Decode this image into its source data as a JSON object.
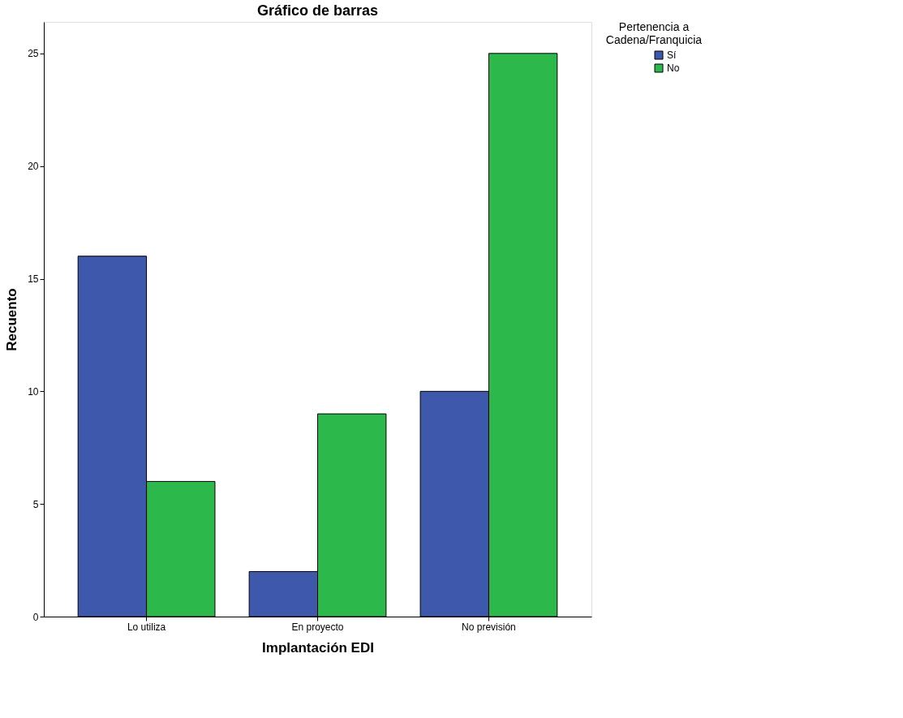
{
  "chart_data": {
    "type": "bar",
    "title": "Gráfico de barras",
    "xlabel": "Implantación EDI",
    "ylabel": "Recuento",
    "legend_title": "Pertenencia a\nCadena/Franquicia",
    "categories": [
      "Lo utiliza",
      "En proyecto",
      "No previsión"
    ],
    "series": [
      {
        "name": "Sí",
        "color": "#3e58ac",
        "values": [
          16,
          2,
          10
        ]
      },
      {
        "name": "No",
        "color": "#2db84b",
        "values": [
          6,
          9,
          25
        ]
      }
    ],
    "ylim": [
      0,
      26.4
    ],
    "yticks": [
      0,
      5,
      10,
      15,
      20,
      25
    ],
    "grid": false,
    "legend": "top right"
  }
}
